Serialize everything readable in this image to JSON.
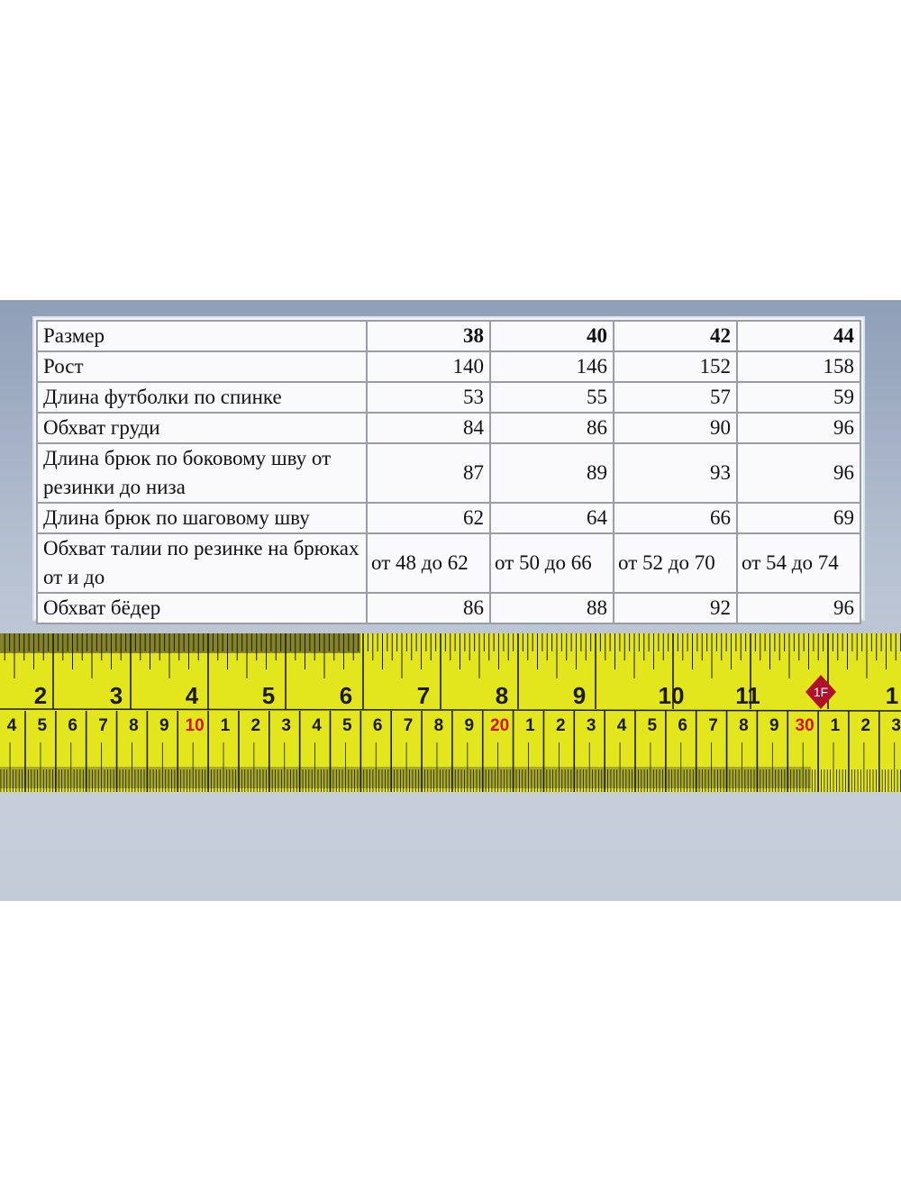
{
  "table": {
    "sizes": [
      "38",
      "40",
      "42",
      "44"
    ],
    "header_label": "Размер",
    "rows": [
      {
        "label": "Рост",
        "values": [
          "140",
          "146",
          "152",
          "158"
        ]
      },
      {
        "label": "Длина футболки по спинке",
        "values": [
          "53",
          "55",
          "57",
          "59"
        ]
      },
      {
        "label": "Обхват груди",
        "values": [
          "84",
          "86",
          "90",
          "96"
        ]
      },
      {
        "label": "Длина брюк по боковому шву от резинки до низа",
        "values": [
          "87",
          "89",
          "93",
          "96"
        ]
      },
      {
        "label": "Длина брюк по шаговому шву",
        "values": [
          "62",
          "64",
          "66",
          "69"
        ]
      },
      {
        "label": "Обхват талии по резинке на брюках от и до",
        "values": [
          "от 48 до 62",
          "от 50 до 66",
          "от 52 до 70",
          "от 54 до 74"
        ]
      },
      {
        "label": "Обхват бёдер",
        "values": [
          "86",
          "88",
          "92",
          "96"
        ]
      }
    ]
  },
  "tape_measure": {
    "inch_labels": [
      "2",
      "3",
      "4",
      "5",
      "6",
      "7",
      "8",
      "9",
      "10",
      "11",
      "1"
    ],
    "cm_labels": [
      "4",
      "5",
      "6",
      "7",
      "8",
      "9",
      "10",
      "1",
      "2",
      "3",
      "4",
      "5",
      "6",
      "7",
      "8",
      "9",
      "20",
      "1",
      "2",
      "3",
      "4",
      "5",
      "6",
      "7",
      "8",
      "9",
      "30",
      "1",
      "2",
      "3"
    ],
    "marker_label": "1F",
    "colors": {
      "tape": "#e3e61c",
      "ink": "#1a1a10",
      "red": "#d4121a",
      "marker": "#b0102a"
    }
  }
}
